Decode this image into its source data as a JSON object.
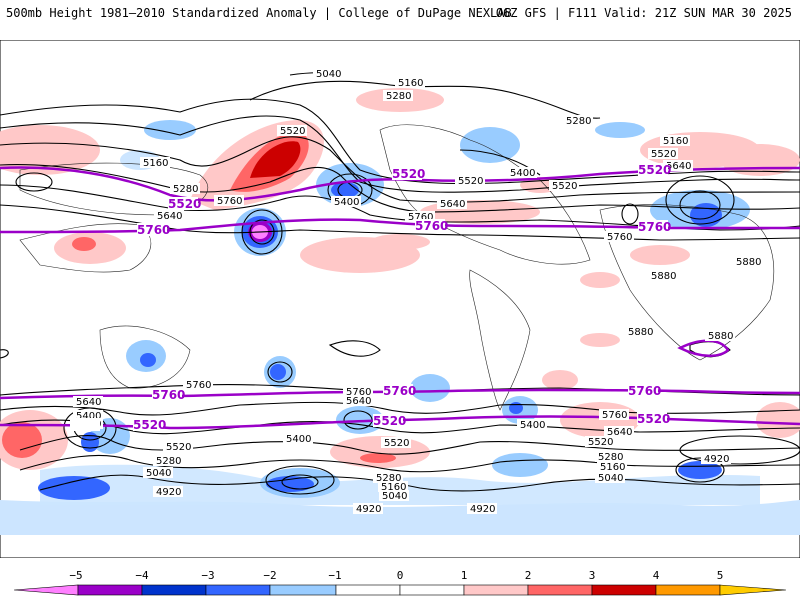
{
  "header": {
    "title": "500mb Height 1981–2010 Standardized Anomaly | College of DuPage NEXLAB",
    "run_info": "06Z GFS | F111 Valid: 21Z SUN MAR 30 2025"
  },
  "map": {
    "contour_labels": [
      {
        "id": "c1",
        "text": "5040"
      },
      {
        "id": "c2",
        "text": "5160"
      },
      {
        "id": "c3",
        "text": "5280"
      },
      {
        "id": "c4",
        "text": "5520"
      },
      {
        "id": "c5",
        "text": "5160"
      },
      {
        "id": "c6",
        "text": "5280"
      },
      {
        "id": "c7",
        "text": "5640"
      },
      {
        "id": "c8",
        "text": "5760"
      },
      {
        "id": "c9",
        "text": "5400"
      },
      {
        "id": "c10",
        "text": "5520"
      },
      {
        "id": "c11",
        "text": "5640"
      },
      {
        "id": "c12",
        "text": "5760"
      },
      {
        "id": "c13",
        "text": "5400"
      },
      {
        "id": "c14",
        "text": "5520"
      },
      {
        "id": "c15",
        "text": "5280"
      },
      {
        "id": "c16",
        "text": "5160"
      },
      {
        "id": "c17",
        "text": "5520"
      },
      {
        "id": "c18",
        "text": "5640"
      },
      {
        "id": "c19",
        "text": "5760"
      },
      {
        "id": "c20",
        "text": "5880"
      },
      {
        "id": "c21",
        "text": "5880"
      },
      {
        "id": "c22",
        "text": "5880"
      },
      {
        "id": "c23",
        "text": "5880"
      },
      {
        "id": "c24",
        "text": "5760"
      },
      {
        "id": "c25",
        "text": "5640"
      },
      {
        "id": "c26",
        "text": "5400"
      },
      {
        "id": "c27",
        "text": "5160"
      },
      {
        "id": "c28",
        "text": "5520"
      },
      {
        "id": "c29",
        "text": "5280"
      },
      {
        "id": "c30",
        "text": "5040"
      },
      {
        "id": "c31",
        "text": "4920"
      },
      {
        "id": "c32",
        "text": "5760"
      },
      {
        "id": "c33",
        "text": "5640"
      },
      {
        "id": "c34",
        "text": "5400"
      },
      {
        "id": "c35",
        "text": "5520"
      },
      {
        "id": "c36",
        "text": "5280"
      },
      {
        "id": "c37",
        "text": "5160"
      },
      {
        "id": "c38",
        "text": "5040"
      },
      {
        "id": "c39",
        "text": "4920"
      },
      {
        "id": "c40",
        "text": "5400"
      },
      {
        "id": "c41",
        "text": "5640"
      },
      {
        "id": "c42",
        "text": "5520"
      },
      {
        "id": "c43",
        "text": "5280"
      },
      {
        "id": "c44",
        "text": "5160"
      },
      {
        "id": "c45",
        "text": "5040"
      },
      {
        "id": "c46",
        "text": "4920"
      },
      {
        "id": "c47",
        "text": "4920"
      },
      {
        "id": "c48",
        "text": "5760"
      },
      {
        "id": "c49",
        "text": "5640"
      },
      {
        "id": "c50",
        "text": "5400"
      },
      {
        "id": "c51",
        "text": "5160"
      },
      {
        "id": "c52",
        "text": "5280"
      },
      {
        "id": "c53",
        "text": "5520"
      },
      {
        "id": "c54",
        "text": "5160"
      },
      {
        "id": "c55",
        "text": "5040"
      },
      {
        "id": "c56",
        "text": "4920"
      }
    ],
    "highlight_labels": [
      {
        "id": "p1",
        "text": "5520"
      },
      {
        "id": "p2",
        "text": "5520"
      },
      {
        "id": "p3",
        "text": "5520"
      },
      {
        "id": "p4",
        "text": "5760"
      },
      {
        "id": "p5",
        "text": "5760"
      },
      {
        "id": "p6",
        "text": "5760"
      },
      {
        "id": "p7",
        "text": "5760"
      },
      {
        "id": "p8",
        "text": "5760"
      },
      {
        "id": "p9",
        "text": "5760"
      },
      {
        "id": "p10",
        "text": "5520"
      },
      {
        "id": "p11",
        "text": "5520"
      },
      {
        "id": "p12",
        "text": "5520"
      },
      {
        "id": "p13",
        "text": "5520"
      },
      {
        "id": "p14",
        "text": "5520"
      }
    ],
    "highlight_color": "#9a00c8",
    "contour_color": "#000000"
  },
  "legend": {
    "ticks": [
      "−5",
      "−4",
      "−3",
      "−2",
      "−1",
      "0",
      "1",
      "2",
      "3",
      "4",
      "5"
    ],
    "colors": {
      "lt_m5": "#ff80ff",
      "m5_m4": "#9a00c8",
      "m4_m3": "#0033cc",
      "m3_m2": "#3366ff",
      "m2_m1": "#99ccff",
      "m1_0": "#ffffff",
      "p0_1": "#ffffff",
      "p1_2": "#ffc8c8",
      "p2_3": "#ff6666",
      "p3_4": "#cc0000",
      "p4_5": "#ff9900",
      "gt_p5": "#ffcc00"
    }
  }
}
